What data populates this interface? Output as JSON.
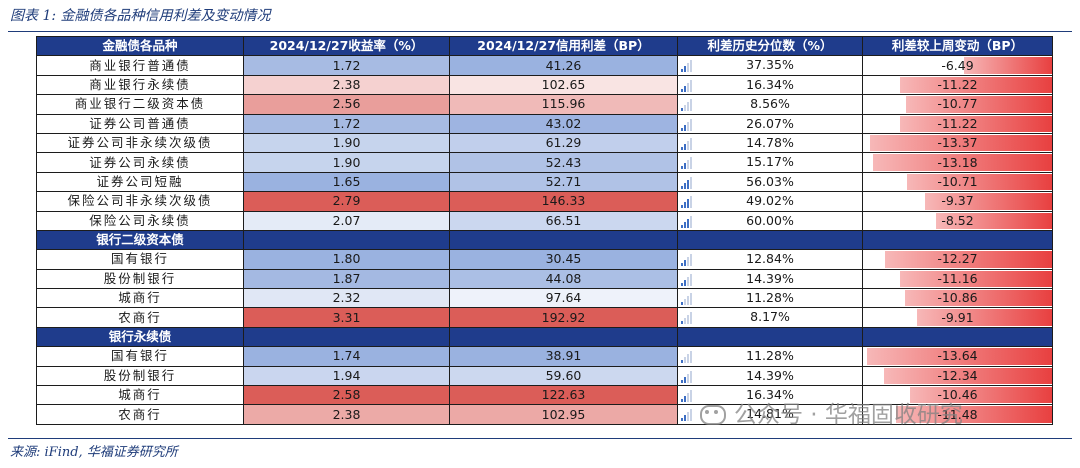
{
  "caption": "图表 1:  金融债各品种信用利差及变动情况",
  "source": "来源:  iFind,  华福证券研究所",
  "watermark": "公众号 · 华福固收研究",
  "header": {
    "col1": "金融债各品种",
    "col2": "2024/12/27收益率（%）",
    "col3": "2024/12/27信用利差（BP）",
    "col4": "利差历史分位数（%）",
    "col5": "利差较上周变动（BP）"
  },
  "group_labels": {
    "g2": "银行二级资本债",
    "g3": "银行永续债"
  },
  "colors": {
    "header_bg": "#1f3c8c",
    "high": "#d9544f",
    "low": "#8fa9dc",
    "neg_bar": "#e84040"
  },
  "chart_data": {
    "type": "table",
    "rows": [
      {
        "name": "商业银行普通债",
        "yield": "1.72",
        "spread": "41.26",
        "pct": "37.35%",
        "change": "-6.49",
        "pct_v": 37.35,
        "chg_v": -6.49
      },
      {
        "name": "商业银行永续债",
        "yield": "2.38",
        "spread": "102.65",
        "pct": "16.34%",
        "change": "-11.22",
        "pct_v": 16.34,
        "chg_v": -11.22
      },
      {
        "name": "商业银行二级资本债",
        "yield": "2.56",
        "spread": "115.96",
        "pct": "8.56%",
        "change": "-10.77",
        "pct_v": 8.56,
        "chg_v": -10.77
      },
      {
        "name": "证券公司普通债",
        "yield": "1.72",
        "spread": "43.02",
        "pct": "26.07%",
        "change": "-11.22",
        "pct_v": 26.07,
        "chg_v": -11.22
      },
      {
        "name": "证券公司非永续次级债",
        "yield": "1.90",
        "spread": "61.29",
        "pct": "14.78%",
        "change": "-13.37",
        "pct_v": 14.78,
        "chg_v": -13.37
      },
      {
        "name": "证券公司永续债",
        "yield": "1.90",
        "spread": "52.43",
        "pct": "15.17%",
        "change": "-13.18",
        "pct_v": 15.17,
        "chg_v": -13.18
      },
      {
        "name": "证券公司短融",
        "yield": "1.65",
        "spread": "52.71",
        "pct": "56.03%",
        "change": "-10.71",
        "pct_v": 56.03,
        "chg_v": -10.71
      },
      {
        "name": "保险公司非永续次级债",
        "yield": "2.79",
        "spread": "146.33",
        "pct": "49.02%",
        "change": "-9.37",
        "pct_v": 49.02,
        "chg_v": -9.37
      },
      {
        "name": "保险公司永续债",
        "yield": "2.07",
        "spread": "66.51",
        "pct": "60.00%",
        "change": "-8.52",
        "pct_v": 60.0,
        "chg_v": -8.52
      }
    ],
    "rows_g2": [
      {
        "name": "国有银行",
        "yield": "1.80",
        "spread": "30.45",
        "pct": "12.84%",
        "change": "-12.27",
        "pct_v": 12.84,
        "chg_v": -12.27
      },
      {
        "name": "股份制银行",
        "yield": "1.87",
        "spread": "44.08",
        "pct": "14.39%",
        "change": "-11.16",
        "pct_v": 14.39,
        "chg_v": -11.16
      },
      {
        "name": "城商行",
        "yield": "2.32",
        "spread": "97.64",
        "pct": "11.28%",
        "change": "-10.86",
        "pct_v": 11.28,
        "chg_v": -10.86
      },
      {
        "name": "农商行",
        "yield": "3.31",
        "spread": "192.92",
        "pct": "8.17%",
        "change": "-9.91",
        "pct_v": 8.17,
        "chg_v": -9.91
      }
    ],
    "rows_g3": [
      {
        "name": "国有银行",
        "yield": "1.74",
        "spread": "38.91",
        "pct": "11.28%",
        "change": "-13.64",
        "pct_v": 11.28,
        "chg_v": -13.64
      },
      {
        "name": "股份制银行",
        "yield": "1.94",
        "spread": "59.60",
        "pct": "14.39%",
        "change": "-12.34",
        "pct_v": 14.39,
        "chg_v": -12.34
      },
      {
        "name": "城商行",
        "yield": "2.58",
        "spread": "122.63",
        "pct": "16.34%",
        "change": "-10.46",
        "pct_v": 16.34,
        "chg_v": -10.46
      },
      {
        "name": "农商行",
        "yield": "2.38",
        "spread": "102.95",
        "pct": "14.81%",
        "change": "-11.48",
        "pct_v": 14.81,
        "chg_v": -11.48
      }
    ]
  }
}
